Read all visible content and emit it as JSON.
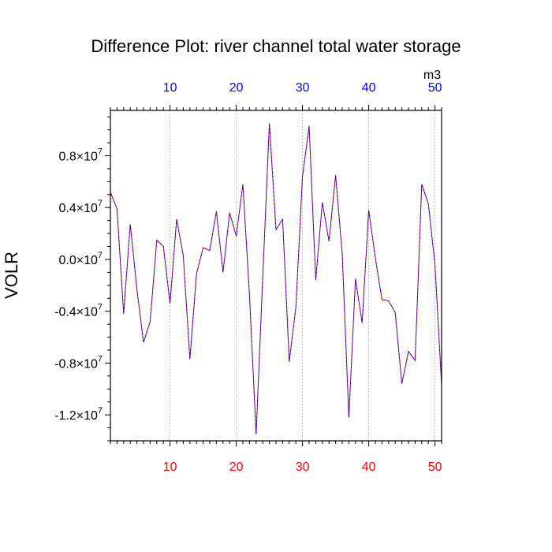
{
  "chart_data": {
    "type": "line",
    "title": "Difference Plot: river channel total water storage",
    "xlabel": "",
    "ylabel": "VOLR",
    "units": "m3",
    "xlim": [
      1,
      51
    ],
    "ylim": [
      -14000000,
      11500000
    ],
    "x_ticks": [
      10,
      20,
      30,
      40,
      50
    ],
    "x_tick_labels": [
      "10",
      "20",
      "30",
      "40",
      "50"
    ],
    "y_ticks": [
      -12000000,
      -8000000,
      -4000000,
      0,
      4000000,
      8000000
    ],
    "y_tick_mantissas": [
      "-1.2",
      "-0.8",
      "-0.4",
      "0.0",
      "0.4",
      "0.8"
    ],
    "y_tick_times": "×10",
    "y_tick_exponent": "7",
    "grid": "vertical dotted at x ticks",
    "colors": {
      "bottom_axis_labels": "#ff0000",
      "top_axis_labels": "#0000ff",
      "series_red": "#ff0000",
      "series_blue": "#0000ff"
    },
    "series": [
      {
        "style": "dashed overlapping red and blue",
        "x": [
          1,
          2,
          3,
          4,
          5,
          6,
          7,
          8,
          9,
          10,
          11,
          12,
          13,
          14,
          15,
          16,
          17,
          18,
          19,
          20,
          21,
          22,
          23,
          24,
          25,
          26,
          27,
          28,
          29,
          30,
          31,
          32,
          33,
          34,
          35,
          36,
          37,
          38,
          39,
          40,
          41,
          42,
          43,
          44,
          45,
          46,
          47,
          48,
          49,
          50,
          51
        ],
        "values": [
          5200000,
          3900000,
          -4200000,
          2700000,
          -2300000,
          -6400000,
          -4800000,
          1500000,
          1000000,
          -3400000,
          3100000,
          300000,
          -7700000,
          -1100000,
          900000,
          700000,
          3700000,
          -1000000,
          3600000,
          1800000,
          5800000,
          -2800000,
          -13500000,
          -1400000,
          10500000,
          2300000,
          3100000,
          -7900000,
          -3700000,
          6400000,
          10300000,
          -1600000,
          4400000,
          1400000,
          6500000,
          400000,
          -12200000,
          -1500000,
          -4900000,
          3800000,
          100000,
          -3100000,
          -3200000,
          -4100000,
          -9600000,
          -7100000,
          -7800000,
          5800000,
          4300000,
          -400000,
          -9700000
        ]
      }
    ]
  }
}
